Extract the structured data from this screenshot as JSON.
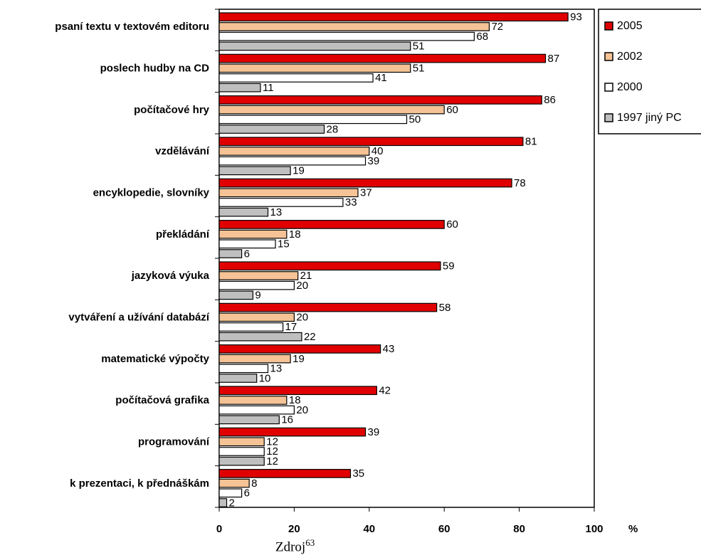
{
  "chart_data": {
    "type": "bar",
    "orientation": "horizontal",
    "categories": [
      "psaní textu v textovém editoru",
      "poslech hudby na  CD",
      "počítačové hry",
      "vzdělávání",
      "encyklopedie, slovníky",
      "překládání",
      "jazyková výuka",
      "vytváření a užívání databází",
      "matematické výpočty",
      "počítačová grafika",
      "programování",
      "k prezentaci, k přednáškám"
    ],
    "series": [
      {
        "name": "2005",
        "color": "#e00000",
        "values": [
          93,
          87,
          86,
          81,
          78,
          60,
          59,
          58,
          43,
          42,
          39,
          35
        ]
      },
      {
        "name": "2002",
        "color": "#f5c396",
        "values": [
          72,
          51,
          60,
          40,
          37,
          18,
          21,
          20,
          19,
          18,
          12,
          8
        ]
      },
      {
        "name": "2000",
        "color": "#ffffff",
        "values": [
          68,
          41,
          50,
          39,
          33,
          15,
          20,
          17,
          13,
          20,
          12,
          6
        ]
      },
      {
        "name": "1997 jiný PC",
        "color": "#bfbfbf",
        "values": [
          51,
          11,
          28,
          19,
          13,
          6,
          9,
          22,
          10,
          16,
          12,
          2
        ]
      }
    ],
    "xlim": [
      0,
      100
    ],
    "xticks": [
      "0",
      "20",
      "40",
      "60",
      "80",
      "100"
    ],
    "xlabel": "%",
    "grid": false,
    "legend_position": "top-right"
  },
  "source": {
    "text": "Zdroj",
    "superscript": "63"
  }
}
